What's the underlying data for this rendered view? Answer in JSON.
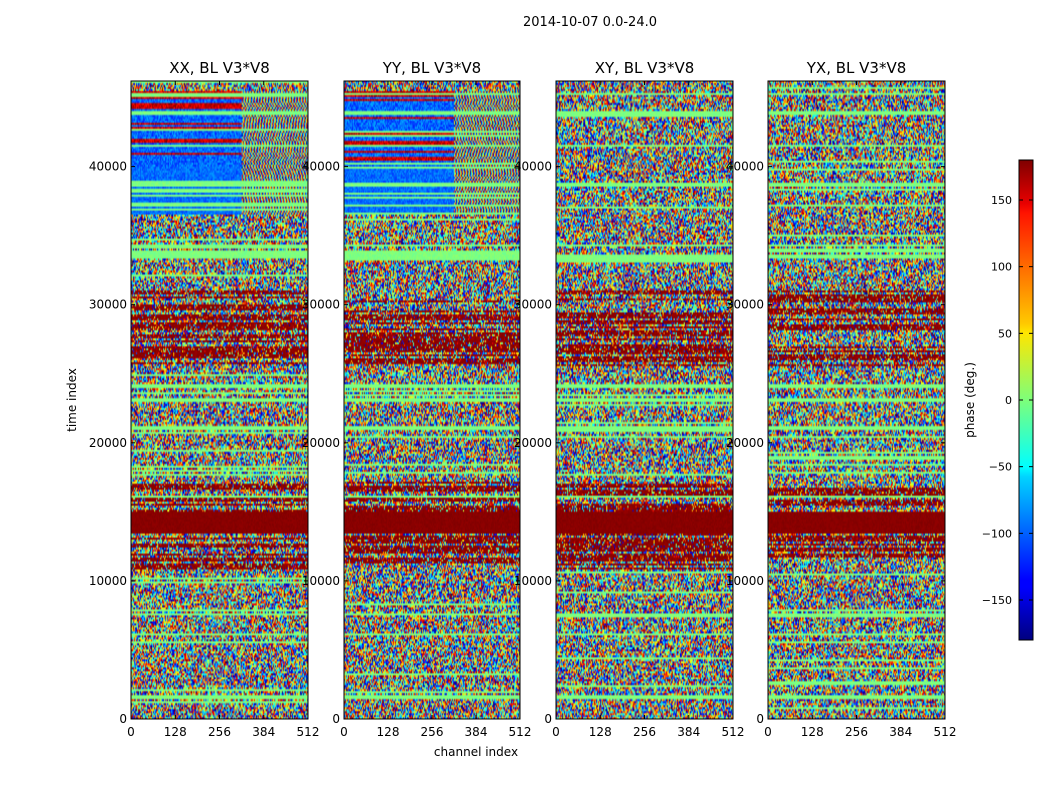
{
  "figure_title": "2014-10-07 0.0-24.0",
  "chart_data": {
    "type": "heatmap",
    "suptitle": "2014-10-07 0.0-24.0",
    "panels": [
      {
        "title": "XX, BL V3*V8",
        "polarization": "XX"
      },
      {
        "title": "YY, BL V3*V8",
        "polarization": "YY"
      },
      {
        "title": "XY, BL V3*V8",
        "polarization": "XY"
      },
      {
        "title": "YX, BL V3*V8",
        "polarization": "YX"
      }
    ],
    "xlabel": "channel index",
    "ylabel": "time index",
    "xlim": [
      0,
      512
    ],
    "ylim": [
      0,
      46200
    ],
    "xticks": [
      0,
      128,
      256,
      384,
      512
    ],
    "xtick_labels": [
      "0",
      "128",
      "256",
      "384",
      "512"
    ],
    "yticks": [
      0,
      10000,
      20000,
      30000,
      40000
    ],
    "ytick_labels": [
      "0",
      "10000",
      "20000",
      "30000",
      "40000"
    ],
    "colorbar": {
      "label": "phase (deg.)",
      "range": [
        -180,
        180
      ],
      "ticks": [
        -150,
        -100,
        -50,
        0,
        50,
        100,
        150
      ],
      "tick_labels": [
        "−150",
        "−100",
        "−50",
        "0",
        "50",
        "100",
        "150"
      ],
      "colormap": "jet"
    },
    "bands": {
      "saturated_red": [
        [
          10900,
          17200
        ],
        [
          25500,
          31000
        ]
      ],
      "solid_red": [
        [
          13400,
          15000
        ]
      ],
      "flagged_green_rows": [
        [
          1500,
          1700
        ],
        [
          6000,
          6200
        ],
        [
          7500,
          7700
        ],
        [
          16000,
          16200
        ],
        [
          21000,
          21200
        ],
        [
          23000,
          23200
        ],
        [
          24000,
          24200
        ],
        [
          33400,
          33600
        ],
        [
          34200,
          34400
        ],
        [
          38600,
          38800
        ],
        [
          41400,
          41600
        ],
        [
          43800,
          44000
        ],
        [
          45200,
          45400
        ]
      ],
      "xx_yy_structured_phase": [
        [
          36500,
          45500
        ]
      ]
    }
  }
}
